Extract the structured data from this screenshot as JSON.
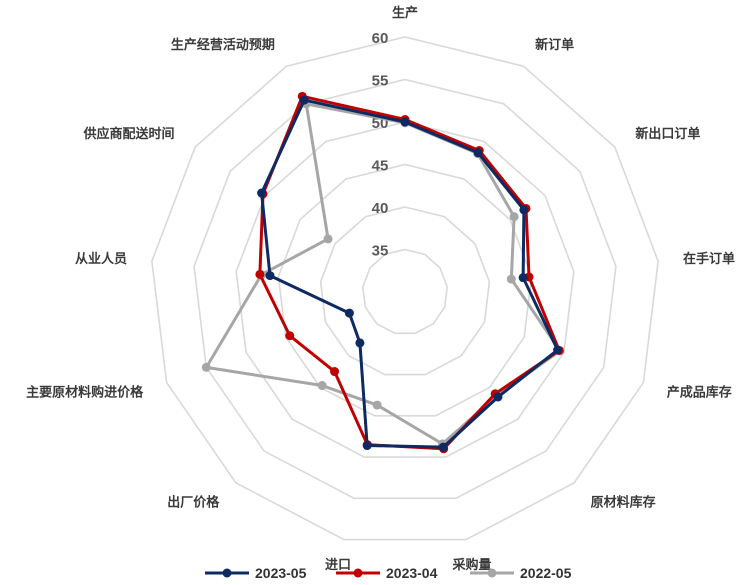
{
  "chart_data": {
    "type": "radar",
    "axes": [
      "生产",
      "新订单",
      "新出口订单",
      "在手订单",
      "产成品库存",
      "原材料库存",
      "采购量",
      "进口",
      "出厂价格",
      "主要原材料购进价格",
      "从业人员",
      "供应商配送时间",
      "生产经营活动预期"
    ],
    "r_ticks": [
      35,
      40,
      45,
      50,
      55,
      60
    ],
    "r_range": [
      30,
      60
    ],
    "grid": true,
    "legend_position": "bottom",
    "series": [
      {
        "name": "2023-05",
        "color": "#0d2a63",
        "values": [
          50.0,
          48.5,
          47.0,
          44.0,
          49.2,
          46.5,
          48.8,
          48.6,
          38.0,
          37.0,
          46.0,
          50.5,
          55.5
        ]
      },
      {
        "name": "2023-04",
        "color": "#c00000",
        "values": [
          50.3,
          48.8,
          47.3,
          44.7,
          49.4,
          46.0,
          49.0,
          48.5,
          42.5,
          44.5,
          47.2,
          50.3,
          56.0
        ]
      },
      {
        "name": "2022-05",
        "color": "#a6a6a6",
        "values": [
          49.9,
          48.4,
          45.6,
          42.6,
          49.5,
          46.3,
          48.4,
          43.7,
          44.7,
          55.0,
          47.0,
          41.0,
          55.0
        ]
      }
    ]
  }
}
